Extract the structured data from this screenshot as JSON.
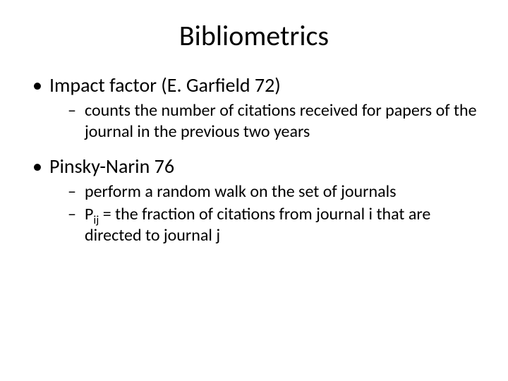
{
  "background_color": "#ffffff",
  "text_color": "#000000",
  "font_family": "Calibri",
  "title": {
    "text": "Bibliometrics",
    "fontsize": 40,
    "align": "center"
  },
  "bullets": [
    {
      "text": "Impact factor (E. Garfield 72)",
      "fontsize": 28,
      "sub": [
        {
          "text": "counts the number of citations received for papers of the journal in the previous two years",
          "fontsize": 24
        }
      ]
    },
    {
      "text": "Pinsky-Narin 76",
      "fontsize": 28,
      "sub": [
        {
          "text": "perform a random walk on the set of journals",
          "fontsize": 24
        },
        {
          "prefix": "P",
          "subscript": "ij",
          "suffix": " = the fraction of citations from journal i that are directed to journal j",
          "fontsize": 24
        }
      ]
    }
  ]
}
